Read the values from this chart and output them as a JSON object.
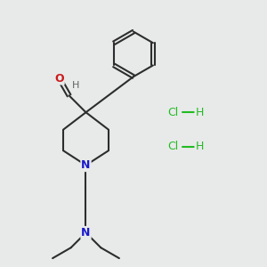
{
  "background_color": "#e8eaea",
  "bond_color": "#2d2d2d",
  "N_color": "#1a1acc",
  "O_color": "#cc1a1a",
  "H_color": "#606060",
  "Cl_color": "#22bb22",
  "line_width": 1.5,
  "figsize": [
    3.0,
    3.0
  ],
  "dpi": 100,
  "xlim": [
    0,
    10
  ],
  "ylim": [
    0,
    10
  ]
}
